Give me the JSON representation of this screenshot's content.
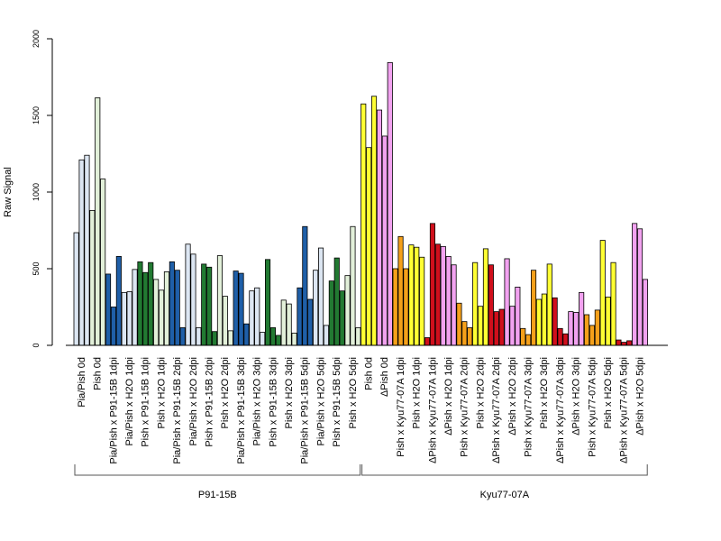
{
  "chart_data": {
    "type": "bar",
    "title": "",
    "ylabel": "Raw Signal",
    "xlabel": "",
    "ylim": [
      0,
      2000
    ],
    "yticks": [
      0,
      500,
      1000,
      1500,
      2000
    ],
    "group_labels": [
      "P91-15B",
      "Kyu77-07A"
    ],
    "categories": [
      "Pia/Pish 0d",
      "Pish 0d",
      "Pia/Pish x P91-15B 1dpi",
      "Pia/Pish x H2O 1dpi",
      "Pish x P91-15B 1dpi",
      "Pish x H2O 1dpi",
      "Pia/Pish x P91-15B 2dpi",
      "Pia/Pish x H2O 2dpi",
      "Pish x P91-15B 2dpi",
      "Pish x H2O 2dpi",
      "Pia/Pish x P91-15B 3dpi",
      "Pia/Pish x H2O 3dpi",
      "Pish x P91-15B 3dpi",
      "Pish x H2O 3dpi",
      "Pia/Pish x P91-15B 5dpi",
      "Pia/Pish x H2O 5dpi",
      "Pish x P91-15B 5dpi",
      "Pish x H2O 5dpi",
      "Pish 0d",
      "ΔPish 0d",
      "Pish x Kyu77-07A 1dpi",
      "Pish x H2O 1dpi",
      "ΔPish x Kyu77-07A 1dpi",
      "ΔPish x H2O 1dpi",
      "Pish x Kyu77-07A 2dpi",
      "Pish x H2O 2dpi",
      "ΔPish x Kyu77-07A 2dpi",
      "ΔPish x H2O 2dpi",
      "Pish x Kyu77-07A 3dpi",
      "Pish x H2O 3dpi",
      "ΔPish x Kyu77-07A 3dpi",
      "ΔPish x H2O 3dpi",
      "Pish x Kyu77-07A 5dpi",
      "Pish x H2O 5dpi",
      "ΔPish x Kyu77-07A 5dpi",
      "ΔPish x H2O 5dpi"
    ],
    "group_spans": [
      [
        0,
        17
      ],
      [
        18,
        35
      ]
    ],
    "replicates": [
      [
        735,
        1210,
        1240
      ],
      [
        880,
        1615,
        1085
      ],
      [
        465,
        250,
        580
      ],
      [
        345,
        350,
        495
      ],
      [
        545,
        475,
        540
      ],
      [
        430,
        360,
        480
      ],
      [
        545,
        490,
        115
      ],
      [
        660,
        595,
        115
      ],
      [
        530,
        510,
        90
      ],
      [
        585,
        320,
        95
      ],
      [
        485,
        470,
        140
      ],
      [
        355,
        375,
        85
      ],
      [
        560,
        115,
        65
      ],
      [
        295,
        270,
        80
      ],
      [
        375,
        775,
        300
      ],
      [
        490,
        635,
        130
      ],
      [
        420,
        570,
        355
      ],
      [
        455,
        775,
        115
      ],
      [
        1575,
        1290,
        1625
      ],
      [
        1535,
        1365,
        1845
      ],
      [
        500,
        710,
        500
      ],
      [
        655,
        640,
        575
      ],
      [
        50,
        795,
        660
      ],
      [
        645,
        580,
        525
      ],
      [
        275,
        155,
        115
      ],
      [
        540,
        255,
        630
      ],
      [
        525,
        220,
        235
      ],
      [
        565,
        255,
        380
      ],
      [
        110,
        70,
        490
      ],
      [
        300,
        335,
        530
      ],
      [
        310,
        110,
        75
      ],
      [
        220,
        215,
        345
      ],
      [
        200,
        130,
        230
      ],
      [
        685,
        315,
        540
      ],
      [
        35,
        20,
        30
      ],
      [
        795,
        760,
        430
      ]
    ],
    "bar_colors": [
      "#dce6f2",
      "#e2f0d9",
      "#1f5fa8",
      "#dce6f2",
      "#227a32",
      "#e2f0d9",
      "#1f5fa8",
      "#dce6f2",
      "#227a32",
      "#e2f0d9",
      "#1f5fa8",
      "#dce6f2",
      "#227a32",
      "#e2f0d9",
      "#1f5fa8",
      "#dce6f2",
      "#227a32",
      "#e2f0d9",
      "#ffff33",
      "#f2a2f0",
      "#f5a01a",
      "#ffff33",
      "#d00f1c",
      "#f2a2f0",
      "#f5a01a",
      "#ffff33",
      "#d00f1c",
      "#f2a2f0",
      "#f5a01a",
      "#ffff33",
      "#d00f1c",
      "#f2a2f0",
      "#f5a01a",
      "#ffff33",
      "#d00f1c",
      "#f2a2f0"
    ],
    "grid": false,
    "legend": "none"
  }
}
